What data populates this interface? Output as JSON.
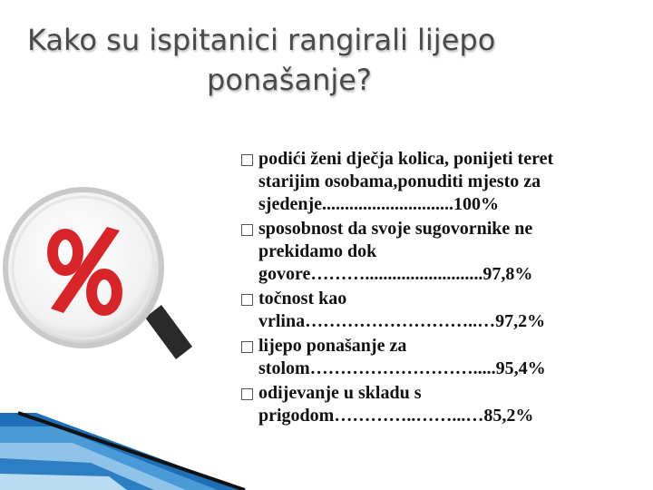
{
  "title": {
    "lines": [
      "Kako su ispitanici rangirali lijepo",
      "ponašanje?"
    ]
  },
  "list": {
    "items": [
      {
        "lines": [
          "podići ženi dječja kolica, ponijeti teret",
          "starijim osobama,ponuditi mjesto za",
          "sjedenje.............................100%"
        ]
      },
      {
        "lines": [
          "sposobnost da svoje sugovornike ne",
          "prekidamo dok",
          "govore………..........................97,8%"
        ]
      },
      {
        "lines": [
          "točnost kao",
          "vrlina………………………..…97,2%"
        ]
      },
      {
        "lines": [
          "lijepo ponašanje za",
          "stolom……………………….....95,4%"
        ]
      },
      {
        "lines": [
          "odijevanje u skladu s",
          "prigodom…………..……...…85,2%"
        ]
      }
    ]
  }
}
